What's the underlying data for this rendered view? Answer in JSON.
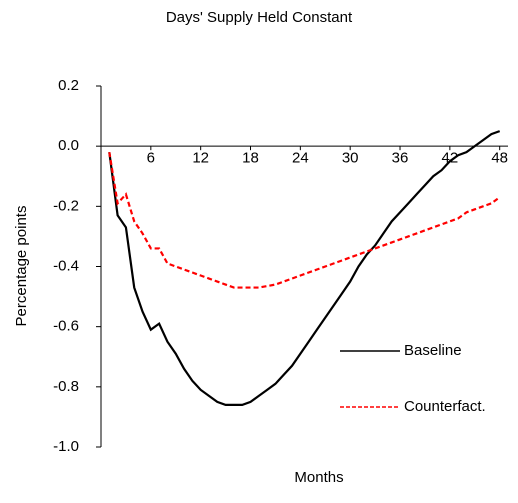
{
  "chart_data": {
    "type": "line",
    "title": "Days' Supply Held Constant",
    "xlabel": "Months",
    "ylabel": "Percentage points",
    "x": [
      1,
      2,
      3,
      4,
      5,
      6,
      7,
      8,
      9,
      10,
      11,
      12,
      13,
      14,
      15,
      16,
      17,
      18,
      19,
      20,
      21,
      22,
      23,
      24,
      25,
      26,
      27,
      28,
      29,
      30,
      31,
      32,
      33,
      34,
      35,
      36,
      37,
      38,
      39,
      40,
      41,
      42,
      43,
      44,
      45,
      46,
      47,
      48
    ],
    "series": [
      {
        "name": "Baseline",
        "color": "#000000",
        "linestyle": "solid",
        "values": [
          -0.02,
          -0.23,
          -0.27,
          -0.47,
          -0.55,
          -0.61,
          -0.59,
          -0.65,
          -0.69,
          -0.74,
          -0.78,
          -0.81,
          -0.83,
          -0.85,
          -0.86,
          -0.86,
          -0.86,
          -0.85,
          -0.83,
          -0.81,
          -0.79,
          -0.76,
          -0.73,
          -0.69,
          -0.65,
          -0.61,
          -0.57,
          -0.53,
          -0.49,
          -0.45,
          -0.4,
          -0.36,
          -0.33,
          -0.29,
          -0.25,
          -0.22,
          -0.19,
          -0.16,
          -0.13,
          -0.1,
          -0.08,
          -0.05,
          -0.03,
          -0.02,
          0.0,
          0.02,
          0.04,
          0.05
        ]
      },
      {
        "name": "Counterfact.",
        "color": "#ff0000",
        "linestyle": "dashed",
        "values": [
          -0.02,
          -0.19,
          -0.16,
          -0.25,
          -0.29,
          -0.34,
          -0.34,
          -0.39,
          -0.4,
          -0.41,
          -0.42,
          -0.43,
          -0.44,
          -0.45,
          -0.46,
          -0.47,
          -0.47,
          -0.47,
          -0.47,
          -0.465,
          -0.46,
          -0.45,
          -0.44,
          -0.43,
          -0.42,
          -0.41,
          -0.4,
          -0.39,
          -0.38,
          -0.37,
          -0.36,
          -0.35,
          -0.34,
          -0.33,
          -0.32,
          -0.31,
          -0.3,
          -0.29,
          -0.28,
          -0.27,
          -0.26,
          -0.25,
          -0.24,
          -0.22,
          -0.21,
          -0.2,
          -0.19,
          -0.17
        ]
      }
    ],
    "xlim": [
      0,
      49
    ],
    "xticks": [
      6,
      12,
      18,
      24,
      30,
      36,
      42,
      48
    ],
    "ylim": [
      -1.0,
      0.2
    ],
    "yticks": [
      0.2,
      {
        "value": 0,
        "label": "0.0"
      },
      -0.2,
      -0.4,
      -0.6,
      -0.8,
      {
        "value": -1.0,
        "label": "-1.0"
      }
    ],
    "grid": false,
    "legend": "lower right"
  }
}
